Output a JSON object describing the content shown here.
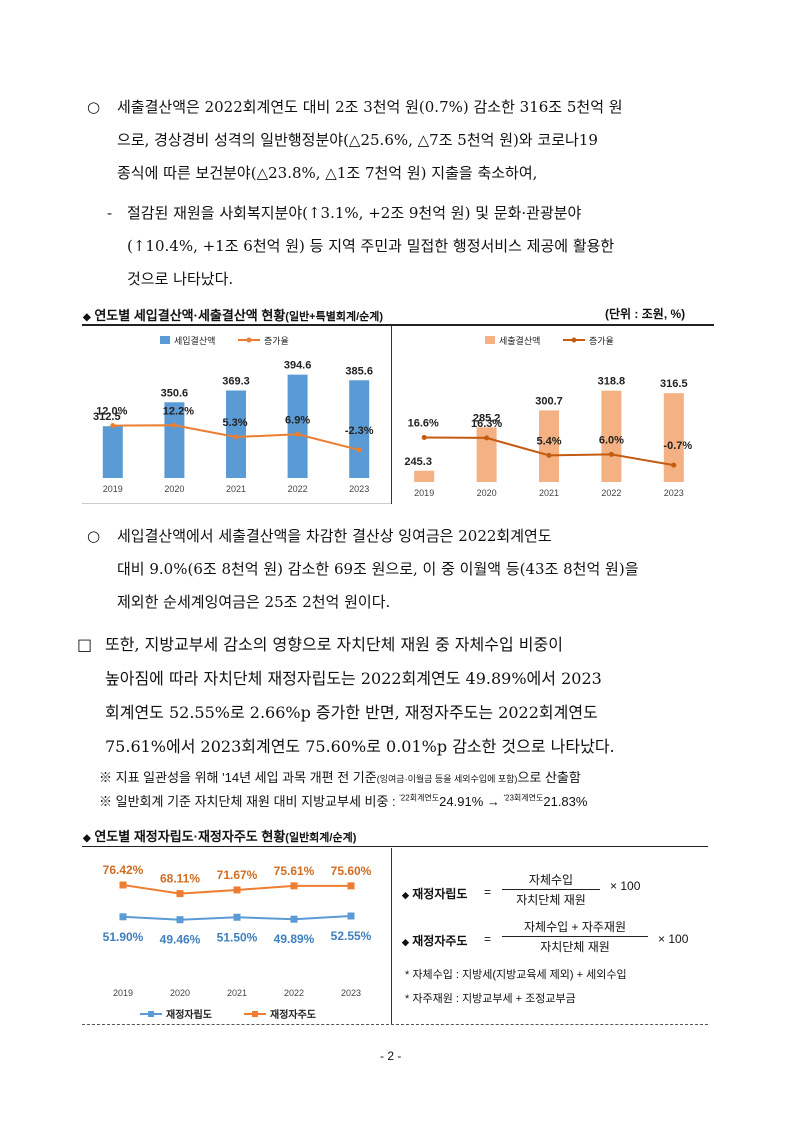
{
  "p1": {
    "bullet": "○",
    "line1": "세출결산액은 2022회계연도 대비 2조 3천억 원(0.7%) 감소한 316조 5천억 원",
    "line2": "으로, 경상경비 성격의 일반행정분야(△25.6%, △7조 5천억 원)와 코로나19",
    "line3": "종식에 따른 보건분야(△23.8%, △1조 7천억 원) 지출을 축소하여,",
    "dash": "-",
    "sub1": "절감된 재원을 사회복지분야(↑3.1%, +2조 9천억 원) 및 문화·관광분야",
    "sub2": "(↑10.4%, +1조 6천억 원) 등 지역 주민과 밀접한 행정서비스 제공에 활용한",
    "sub3": "것으로 나타났다."
  },
  "section1": {
    "marker": "◆",
    "title": "연도별 세입결산액·세출결산액 현황",
    "subtitle": "(일반+특별회계/순계)",
    "unit": "(단위 : 조원, %)"
  },
  "chart_data": [
    {
      "type": "bar",
      "categories": [
        "2019",
        "2020",
        "2021",
        "2022",
        "2023"
      ],
      "series": [
        {
          "name": "세입결산액",
          "values": [
            312.5,
            350.6,
            369.3,
            394.6,
            385.6
          ],
          "labels": [
            "312.5",
            "350.6",
            "369.3",
            "394.6",
            "385.6"
          ],
          "color": "#5b9bd5"
        },
        {
          "name": "증가율",
          "type": "line",
          "values": [
            12.0,
            12.2,
            5.3,
            6.9,
            -2.3
          ],
          "labels": [
            "12.0%",
            "12.2%",
            "5.3%",
            "6.9%",
            "-2.3%"
          ],
          "color": "#ed7d31"
        }
      ]
    },
    {
      "type": "bar",
      "categories": [
        "2019",
        "2020",
        "2021",
        "2022",
        "2023"
      ],
      "series": [
        {
          "name": "세출결산액",
          "values": [
            245.3,
            285.2,
            300.7,
            318.8,
            316.5
          ],
          "labels": [
            "245.3",
            "285.2",
            "300.7",
            "318.8",
            "316.5"
          ],
          "color": "#f4b183"
        },
        {
          "name": "증가율",
          "type": "line",
          "values": [
            16.6,
            16.3,
            5.4,
            6.0,
            -0.7
          ],
          "labels": [
            "16.6%",
            "16.3%",
            "5.4%",
            "6.0%",
            "-0.7%"
          ],
          "color": "#c55a11"
        }
      ]
    },
    {
      "type": "line",
      "categories": [
        "2019",
        "2020",
        "2021",
        "2022",
        "2023"
      ],
      "series": [
        {
          "name": "재정자립도",
          "values": [
            51.9,
            49.46,
            51.5,
            49.89,
            52.55
          ],
          "labels": [
            "51.90%",
            "49.46%",
            "51.50%",
            "49.89%",
            "52.55%"
          ],
          "color": "#5b9bd5"
        },
        {
          "name": "재정자주도",
          "values": [
            76.42,
            68.11,
            71.67,
            75.61,
            75.6
          ],
          "labels": [
            "76.42%",
            "68.11%",
            "71.67%",
            "75.61%",
            "75.60%"
          ],
          "color": "#ed7d31"
        }
      ]
    }
  ],
  "p2": {
    "bullet": "○",
    "line1": "세입결산액에서 세출결산액을 차감한 결산상 잉여금은 2022회계연도",
    "line2": "대비 9.0%(6조 8천억 원) 감소한 69조 원으로, 이 중 이월액 등(43조 8천억 원)을",
    "line3": "제외한 순세계잉여금은 25조 2천억 원이다."
  },
  "p3": {
    "bullet": "□",
    "line1": "또한, 지방교부세 감소의 영향으로 자치단체 재원 중 자체수입 비중이",
    "line2": "높아짐에 따라 자치단체 재정자립도는 2022회계연도 49.89%에서 2023",
    "line3": "회계연도 52.55%로 2.66%p 증가한 반면, 재정자주도는 2022회계연도",
    "line4": "75.61%에서 2023회계연도 75.60%로 0.01%p 감소한 것으로 나타났다."
  },
  "notes": {
    "n1_a": "※ 지표 일관성을 위해 '14년 세입 과목 개편 전 기준",
    "n1_b": "(잉여금·이월금 등을 세외수입에 포함)",
    "n1_c": "으로 산출함",
    "n2_a": "※ 일반회계 기준 자치단체 재원 대비 지방교부세 비중 : ",
    "n2_b": "'22회계연도",
    "n2_c": "24.91% → ",
    "n2_d": "'23회계연도",
    "n2_e": "21.83%"
  },
  "section2": {
    "marker": "◆",
    "title": "연도별 재정자립도·재정자주도 현황",
    "subtitle": "(일반회계/순계)"
  },
  "formulas": {
    "f1_label": "재정자립도",
    "f1_eq": "=",
    "f1_num": "자체수입",
    "f1_den": "자치단체 재원",
    "f1_mul": "× 100",
    "f2_label": "재정자주도",
    "f2_eq": "=",
    "f2_num": "자체수입 + 자주재원",
    "f2_den": "자치단체 재원",
    "f2_mul": "× 100",
    "def1": "* 자체수입 : 지방세(지방교육세 제외) + 세외수입",
    "def2": "* 자주재원 : 지방교부세 + 조정교부금"
  },
  "page_number": "- 2 -"
}
